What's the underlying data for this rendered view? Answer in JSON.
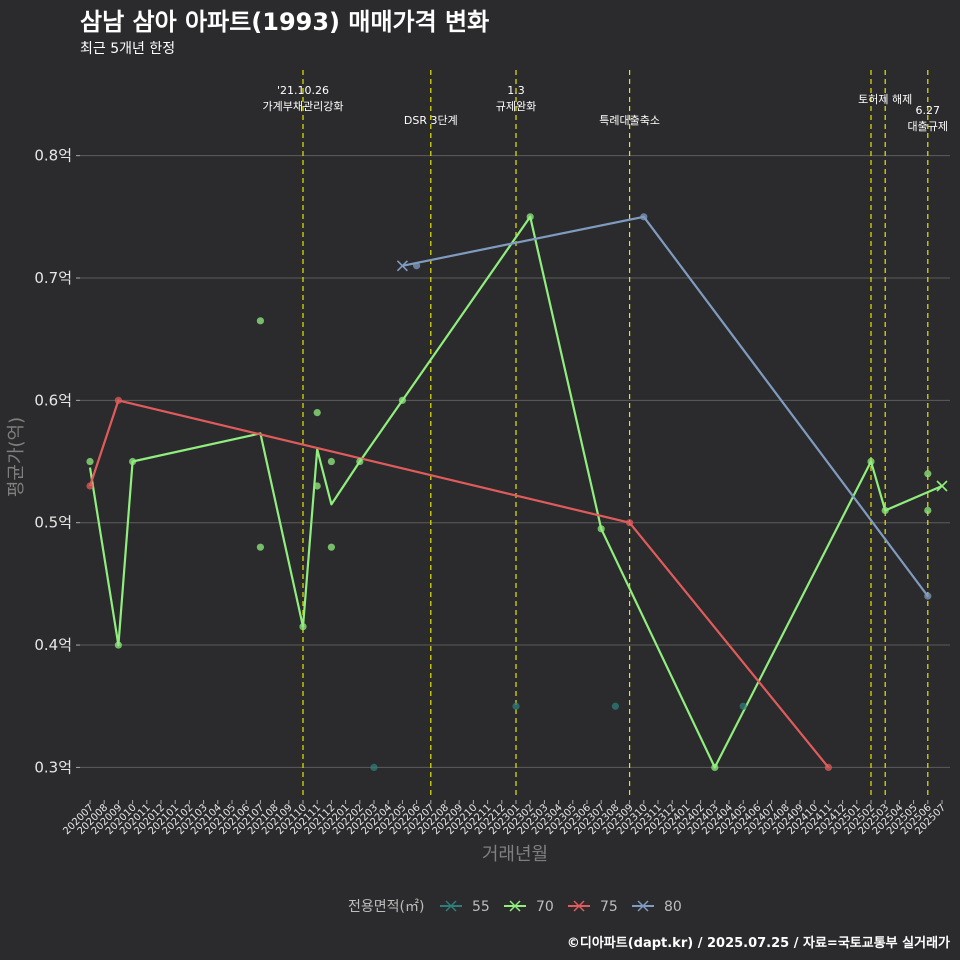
{
  "chart_data": {
    "type": "line",
    "title": "삼남 삼아 아파트(1993) 매매가격 변화",
    "subtitle": "최근 5개년 한정",
    "xlabel": "거래년월",
    "ylabel": "평균가(억)",
    "ylim": [
      0.275,
      0.87
    ],
    "yticks": [
      {
        "value": 0.3,
        "label": "0.3억"
      },
      {
        "value": 0.4,
        "label": "0.4억"
      },
      {
        "value": 0.5,
        "label": "0.5억"
      },
      {
        "value": 0.6,
        "label": "0.6억"
      },
      {
        "value": 0.7,
        "label": "0.7억"
      },
      {
        "value": 0.8,
        "label": "0.8억"
      }
    ],
    "categories": [
      "202007",
      "202008",
      "202009",
      "202010",
      "202011",
      "202012",
      "202101",
      "202102",
      "202103",
      "202104",
      "202105",
      "202106",
      "202107",
      "202108",
      "202109",
      "202110",
      "202111",
      "202112",
      "202201",
      "202202",
      "202203",
      "202204",
      "202205",
      "202206",
      "202207",
      "202208",
      "202209",
      "202210",
      "202211",
      "202212",
      "202301",
      "202302",
      "202303",
      "202304",
      "202305",
      "202306",
      "202307",
      "202308",
      "202309",
      "202310",
      "202311",
      "202312",
      "202401",
      "202402",
      "202403",
      "202404",
      "202405",
      "202406",
      "202407",
      "202408",
      "202409",
      "202410",
      "202411",
      "202412",
      "202501",
      "202502",
      "202503",
      "202504",
      "202505",
      "202506",
      "202507"
    ],
    "series": [
      {
        "name": "55",
        "color": "#2e7d7a",
        "points": [
          [
            20.0,
            0.3
          ],
          [
            30.0,
            0.35
          ],
          [
            37.0,
            0.35
          ],
          [
            46.0,
            0.35
          ]
        ],
        "line": []
      },
      {
        "name": "70",
        "color": "#90ee7e",
        "points": [
          [
            0.0,
            0.55
          ],
          [
            2.0,
            0.4
          ],
          [
            3.0,
            0.55
          ],
          [
            12.0,
            0.665
          ],
          [
            12.0,
            0.48
          ],
          [
            15.0,
            0.415
          ],
          [
            16.0,
            0.59
          ],
          [
            16.0,
            0.53
          ],
          [
            17.0,
            0.55
          ],
          [
            17.0,
            0.48
          ],
          [
            19.0,
            0.55
          ],
          [
            22.0,
            0.6
          ],
          [
            31.0,
            0.75
          ],
          [
            36.0,
            0.495
          ],
          [
            44.0,
            0.3
          ],
          [
            55.0,
            0.55
          ],
          [
            56.0,
            0.51
          ],
          [
            59.0,
            0.54
          ],
          [
            59.0,
            0.51
          ]
        ],
        "line": [
          [
            0.0,
            0.545
          ],
          [
            2.0,
            0.4
          ],
          [
            3.0,
            0.55
          ],
          [
            12.0,
            0.573
          ],
          [
            15.0,
            0.415
          ],
          [
            16.0,
            0.56
          ],
          [
            17.0,
            0.515
          ],
          [
            19.0,
            0.55
          ],
          [
            22.0,
            0.6
          ],
          [
            31.0,
            0.75
          ],
          [
            36.0,
            0.495
          ],
          [
            44.0,
            0.3
          ],
          [
            55.0,
            0.55
          ],
          [
            56.0,
            0.51
          ],
          [
            59.0,
            0.525
          ],
          [
            60.0,
            0.53
          ]
        ]
      },
      {
        "name": "75",
        "color": "#e05c5c",
        "points": [
          [
            0.0,
            0.53
          ],
          [
            2.0,
            0.6
          ],
          [
            38.0,
            0.5
          ],
          [
            52.0,
            0.3
          ]
        ],
        "line": [
          [
            0.0,
            0.53
          ],
          [
            2.0,
            0.6
          ],
          [
            38.0,
            0.5
          ],
          [
            52.0,
            0.3
          ]
        ]
      },
      {
        "name": "80",
        "color": "#7f9cc0",
        "points": [
          [
            23.0,
            0.71
          ],
          [
            39.0,
            0.75
          ],
          [
            59.0,
            0.44
          ]
        ],
        "line": [
          [
            22.0,
            0.71
          ],
          [
            39.0,
            0.75
          ],
          [
            59.0,
            0.44
          ]
        ]
      }
    ],
    "cross_markers": [
      {
        "series": "80",
        "x": 22.0,
        "y": 0.71
      },
      {
        "series": "70",
        "x": 60.0,
        "y": 0.53
      }
    ],
    "annotations": [
      {
        "x": 15.0,
        "lines": [
          "'21.10.26",
          "가계부채관리강화"
        ],
        "level": "high"
      },
      {
        "x": 24.0,
        "lines": [
          "DSR 3단계"
        ],
        "level": "low"
      },
      {
        "x": 30.0,
        "lines": [
          "1.3",
          "규제완화"
        ],
        "level": "high"
      },
      {
        "x": 38.0,
        "lines": [
          "특례대출축소"
        ],
        "level": "low"
      },
      {
        "x": 55.0,
        "lines": [],
        "level": "none"
      },
      {
        "x": 56.0,
        "lines": [
          "토허제 해제"
        ],
        "level": "mid"
      },
      {
        "x": 59.0,
        "lines": [
          "6.27",
          "대출규제"
        ],
        "level": "lowest"
      }
    ],
    "legend_title": "전용면적(㎡)",
    "legend_position": "bottom"
  },
  "caption": "©디아파트(dapt.kr) / 2025.07.25 / 자료=국토교통부 실거래가"
}
